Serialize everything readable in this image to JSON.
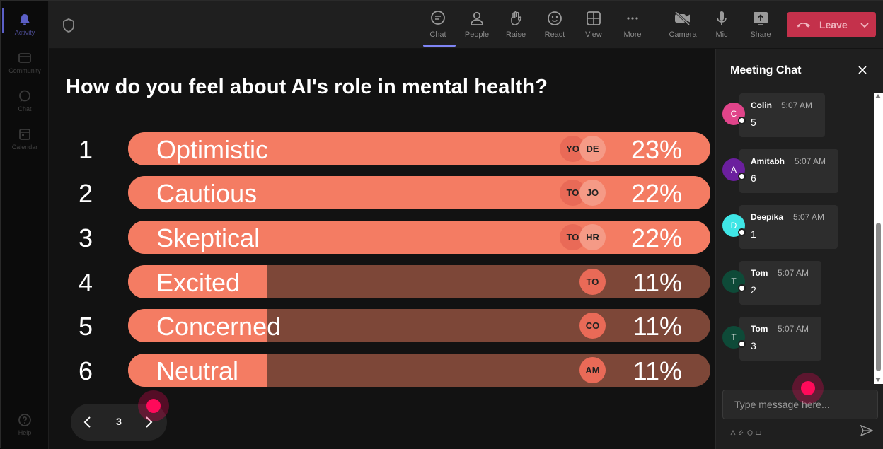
{
  "rail": {
    "items": [
      {
        "label": "Activity",
        "icon": "bell-icon",
        "active": true
      },
      {
        "label": "Community",
        "icon": "community-icon"
      },
      {
        "label": "Chat",
        "icon": "chat-icon"
      },
      {
        "label": "Calendar",
        "icon": "calendar-icon"
      }
    ],
    "help": {
      "label": "Help",
      "icon": "help-icon"
    }
  },
  "toolbar": {
    "buttons": [
      {
        "label": "Chat",
        "icon": "chat-icon",
        "active": true
      },
      {
        "label": "People",
        "icon": "people-icon"
      },
      {
        "label": "Raise",
        "icon": "raise-hand-icon"
      },
      {
        "label": "React",
        "icon": "react-smiley-icon"
      },
      {
        "label": "View",
        "icon": "view-grid-icon"
      },
      {
        "label": "More",
        "icon": "more-icon"
      },
      {
        "label": "Camera",
        "icon": "camera-off-icon"
      },
      {
        "label": "Mic",
        "icon": "mic-icon"
      },
      {
        "label": "Share",
        "icon": "share-icon"
      }
    ],
    "leave_label": "Leave",
    "leave_color": "#c4314b"
  },
  "poll": {
    "question": "How do you feel about AI's role in mental health?",
    "colors": {
      "fill": "#f47c63",
      "rest": "#7d4738"
    },
    "options": [
      {
        "num": "1",
        "label": "Optimistic",
        "percent": 23,
        "pct_label": "23%",
        "avatars": [
          "YO",
          "DE"
        ]
      },
      {
        "num": "2",
        "label": "Cautious",
        "percent": 22,
        "pct_label": "22%",
        "avatars": [
          "TO",
          "JO"
        ]
      },
      {
        "num": "3",
        "label": "Skeptical",
        "percent": 22,
        "pct_label": "22%",
        "avatars": [
          "TO",
          "HR"
        ]
      },
      {
        "num": "4",
        "label": "Excited",
        "percent": 11,
        "pct_label": "11%",
        "avatars": [
          "TO"
        ]
      },
      {
        "num": "5",
        "label": "Concerned",
        "percent": 11,
        "pct_label": "11%",
        "avatars": [
          "CO"
        ]
      },
      {
        "num": "6",
        "label": "Neutral",
        "percent": 11,
        "pct_label": "11%",
        "avatars": [
          "AM"
        ]
      }
    ],
    "page": "3"
  },
  "chat": {
    "title": "Meeting Chat",
    "messages": [
      {
        "initial": "C",
        "author": "Colin",
        "time": "5:07 AM",
        "text": "5",
        "color": "#e0448a"
      },
      {
        "initial": "A",
        "author": "Amitabh",
        "time": "5:07 AM",
        "text": "6",
        "color": "#6b1f9e"
      },
      {
        "initial": "D",
        "author": "Deepika",
        "time": "5:07 AM",
        "text": "1",
        "color": "#3fe6e6"
      },
      {
        "initial": "T",
        "author": "Tom",
        "time": "5:07 AM",
        "text": "2",
        "color": "#0e4a38"
      },
      {
        "initial": "T",
        "author": "Tom",
        "time": "5:07 AM",
        "text": "3",
        "color": "#0e4a38"
      }
    ],
    "input_placeholder": "Type message here..."
  }
}
